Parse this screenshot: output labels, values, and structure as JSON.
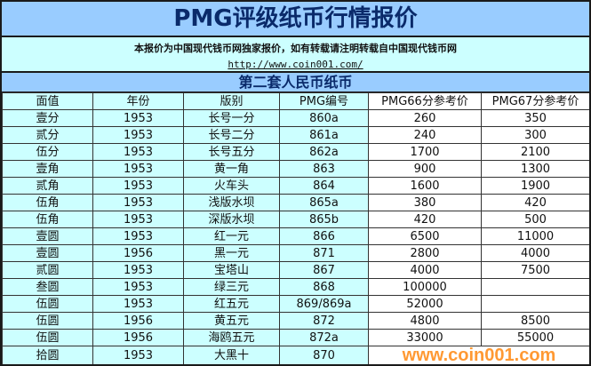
{
  "title": "PMG评级纸币行情报价",
  "notice": "本报价为中国现代钱币网独家报价，如有转载请注明转载自中国现代钱币网",
  "url": "http://www.coin001.com/",
  "section": "第二套人民币纸币",
  "watermark": "www.coin001.com",
  "colors": {
    "title_bg": "#99ccff",
    "cell_bg": "#ccffff",
    "watermark": "#ff9933"
  },
  "headers": [
    "面值",
    "年份",
    "版别",
    "PMG编号",
    "PMG66分参考价",
    "PMG67分参考价"
  ],
  "rows": [
    [
      "壹分",
      "1953",
      "长号一分",
      "860a",
      "260",
      "350"
    ],
    [
      "贰分",
      "1953",
      "长号二分",
      "861a",
      "240",
      "300"
    ],
    [
      "伍分",
      "1953",
      "长号五分",
      "862a",
      "1700",
      "2100"
    ],
    [
      "壹角",
      "1953",
      "黄一角",
      "863",
      "900",
      "1300"
    ],
    [
      "贰角",
      "1953",
      "火车头",
      "864",
      "1600",
      "1900"
    ],
    [
      "伍角",
      "1953",
      "浅版水坝",
      "865a",
      "380",
      "420"
    ],
    [
      "伍角",
      "1953",
      "深版水坝",
      "865b",
      "420",
      "500"
    ],
    [
      "壹圆",
      "1953",
      "红一元",
      "866",
      "6500",
      "11000"
    ],
    [
      "壹圆",
      "1956",
      "黑一元",
      "871",
      "2800",
      "4000"
    ],
    [
      "贰圆",
      "1953",
      "宝塔山",
      "867",
      "4000",
      "7500"
    ],
    [
      "叁圆",
      "1953",
      "绿三元",
      "868",
      "100000",
      ""
    ],
    [
      "伍圆",
      "1953",
      "红五元",
      "869/869a",
      "52000",
      ""
    ],
    [
      "伍圆",
      "1956",
      "黄五元",
      "872",
      "4800",
      "8500"
    ],
    [
      "伍圆",
      "1956",
      "海鸥五元",
      "872a",
      "33000",
      "55000"
    ],
    [
      "拾圆",
      "1953",
      "大黑十",
      "870",
      "",
      ""
    ]
  ]
}
